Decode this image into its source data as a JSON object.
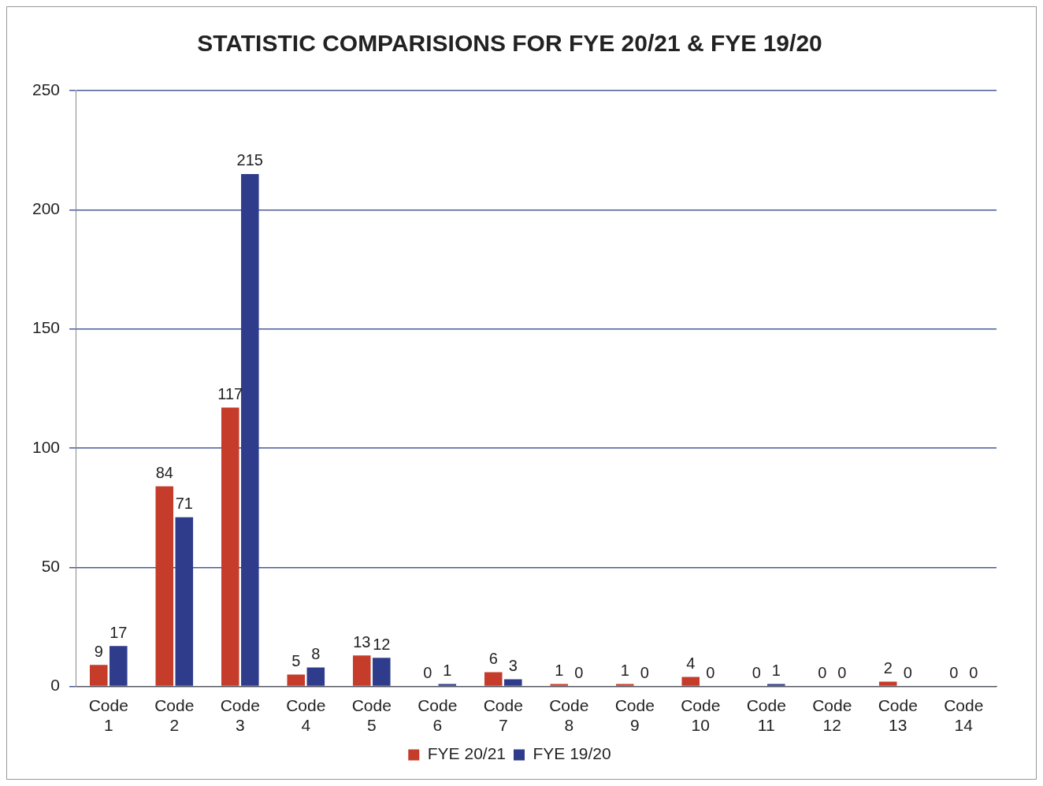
{
  "chart_data": {
    "type": "bar",
    "title": "STATISTIC COMPARISIONS FOR FYE 20/21 & FYE 19/20",
    "categories": [
      "Code 1",
      "Code 2",
      "Code 3",
      "Code 4",
      "Code 5",
      "Code 6",
      "Code 7",
      "Code 8",
      "Code 9",
      "Code 10",
      "Code 11",
      "Code 12",
      "Code 13",
      "Code 14"
    ],
    "series": [
      {
        "name": "FYE 20/21",
        "color": "#c63c2a",
        "values": [
          9,
          84,
          117,
          5,
          13,
          0,
          6,
          1,
          1,
          4,
          0,
          0,
          2,
          0
        ]
      },
      {
        "name": "FYE 19/20",
        "color": "#2f3c8c",
        "values": [
          17,
          71,
          215,
          8,
          12,
          1,
          3,
          0,
          0,
          0,
          1,
          0,
          0,
          0
        ]
      }
    ],
    "ylim": [
      0,
      250
    ],
    "yticks": [
      0,
      50,
      100,
      150,
      200,
      250
    ],
    "grid": "y",
    "legend": "bottom",
    "data_labels": true
  }
}
